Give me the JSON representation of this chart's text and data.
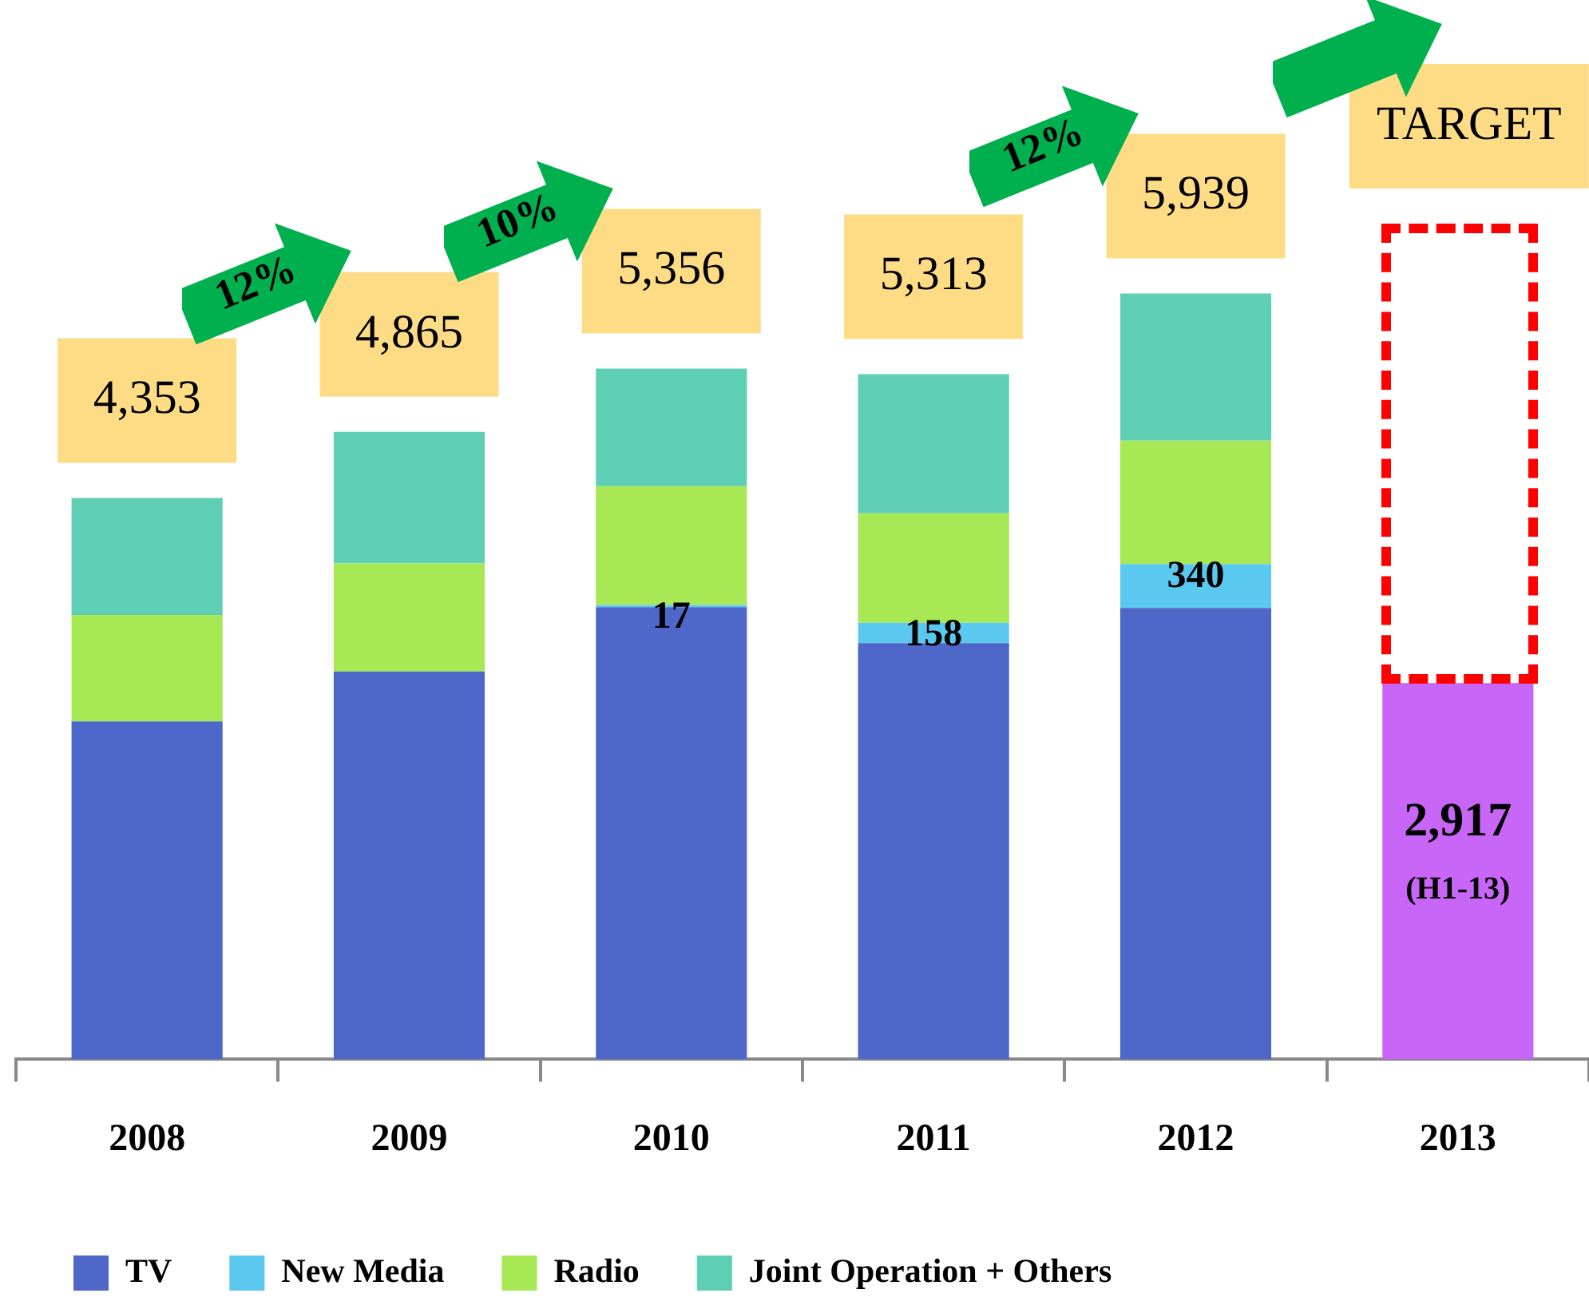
{
  "chart_data": {
    "type": "bar",
    "stacked": true,
    "categories": [
      "2008",
      "2009",
      "2010",
      "2011",
      "2012",
      "2013"
    ],
    "series": [
      {
        "name": "TV",
        "color": "#4f67c8",
        "values": [
          2620,
          3008,
          3506,
          3227,
          3500,
          null
        ]
      },
      {
        "name": "New Media",
        "color": "#5bc8f0",
        "values": [
          null,
          null,
          17,
          158,
          340,
          null
        ],
        "value_labels": [
          null,
          null,
          "17",
          "158",
          "340",
          null
        ]
      },
      {
        "name": "Radio",
        "color": "#a8e854",
        "values": [
          825,
          837,
          922,
          849,
          958,
          null
        ]
      },
      {
        "name": "Joint Operation + Others",
        "color": "#5ecfb4",
        "values": [
          908,
          1020,
          911,
          1079,
          1141,
          null
        ]
      },
      {
        "color": "#c866f8",
        "values": [
          null,
          null,
          null,
          null,
          null,
          2917
        ],
        "value_labels": [
          null,
          null,
          null,
          null,
          null,
          "2,917"
        ]
      }
    ],
    "totals": [
      "4,353",
      "4,865",
      "5,356",
      "5,313",
      "5,939",
      null
    ],
    "annotations": [
      "12%",
      "10%",
      "12%",
      "TARGET",
      "(H1-13)"
    ],
    "tick_labels": "x",
    "legend": "bottom left"
  }
}
